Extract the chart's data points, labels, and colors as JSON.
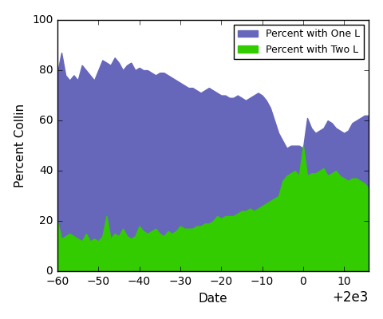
{
  "title": "",
  "xlabel": "Date",
  "ylabel": "Percent Collin",
  "xlim": [
    1940,
    2016
  ],
  "ylim": [
    0,
    100
  ],
  "xticks": [
    1940,
    1950,
    1960,
    1970,
    1980,
    1990,
    2000,
    2010
  ],
  "yticks": [
    0,
    20,
    40,
    60,
    80,
    100
  ],
  "legend_one_l": "Percent with One L",
  "legend_two_l": "Percent with Two L",
  "color_one_l": "#6666bb",
  "color_two_l": "#33cc00",
  "years": [
    1940,
    1941,
    1942,
    1943,
    1944,
    1945,
    1946,
    1947,
    1948,
    1949,
    1950,
    1951,
    1952,
    1953,
    1954,
    1955,
    1956,
    1957,
    1958,
    1959,
    1960,
    1961,
    1962,
    1963,
    1964,
    1965,
    1966,
    1967,
    1968,
    1969,
    1970,
    1971,
    1972,
    1973,
    1974,
    1975,
    1976,
    1977,
    1978,
    1979,
    1980,
    1981,
    1982,
    1983,
    1984,
    1985,
    1986,
    1987,
    1988,
    1989,
    1990,
    1991,
    1992,
    1993,
    1994,
    1995,
    1996,
    1997,
    1998,
    1999,
    2000,
    2001,
    2002,
    2003,
    2004,
    2005,
    2006,
    2007,
    2008,
    2009,
    2010,
    2011,
    2012,
    2013,
    2014,
    2015,
    2016
  ],
  "one_l": [
    79,
    87,
    78,
    76,
    78,
    76,
    82,
    80,
    78,
    76,
    80,
    84,
    83,
    82,
    85,
    83,
    80,
    82,
    83,
    80,
    81,
    80,
    80,
    79,
    78,
    79,
    79,
    78,
    77,
    76,
    75,
    74,
    73,
    73,
    72,
    71,
    72,
    73,
    72,
    71,
    70,
    70,
    69,
    69,
    70,
    69,
    68,
    69,
    70,
    71,
    70,
    68,
    65,
    60,
    55,
    52,
    49,
    50,
    50,
    50,
    49,
    61,
    57,
    55,
    56,
    57,
    60,
    59,
    57,
    56,
    55,
    56,
    59,
    60,
    61,
    62,
    62
  ],
  "two_l": [
    20,
    13,
    14,
    15,
    14,
    13,
    12,
    15,
    12,
    13,
    12,
    14,
    22,
    13,
    15,
    14,
    17,
    14,
    13,
    14,
    18,
    16,
    15,
    16,
    17,
    15,
    14,
    16,
    15,
    16,
    18,
    17,
    17,
    17,
    18,
    18,
    19,
    19,
    20,
    22,
    21,
    22,
    22,
    22,
    23,
    24,
    24,
    25,
    24,
    25,
    26,
    27,
    28,
    29,
    30,
    36,
    38,
    39,
    40,
    38,
    50,
    38,
    39,
    39,
    40,
    41,
    38,
    39,
    40,
    38,
    37,
    36,
    37,
    37,
    36,
    35,
    33
  ]
}
